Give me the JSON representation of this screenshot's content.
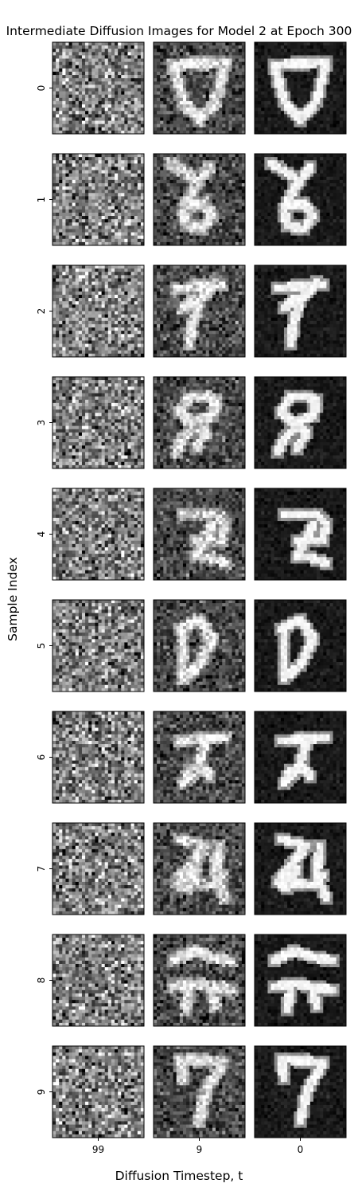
{
  "chart_data": {
    "type": "image_grid",
    "title": "Intermediate Diffusion Images for Model 2 at Epoch 300",
    "xlabel": "Diffusion Timestep, t",
    "ylabel": "Sample Index",
    "columns": [
      "99",
      "9",
      "0"
    ],
    "rows": [
      "0",
      "1",
      "2",
      "3",
      "4",
      "5",
      "6",
      "7",
      "8",
      "9"
    ],
    "colormap": "gray",
    "image_resolution": [
      28,
      28
    ],
    "noise_levels": [
      1.0,
      0.55,
      0.1
    ],
    "row_contents": [
      "digit 0",
      "digit 6",
      "digit 7",
      "digit 9",
      "digit 2",
      "digit 0",
      "digit 2",
      "digit 2",
      "digit 2",
      "digit 7"
    ]
  }
}
